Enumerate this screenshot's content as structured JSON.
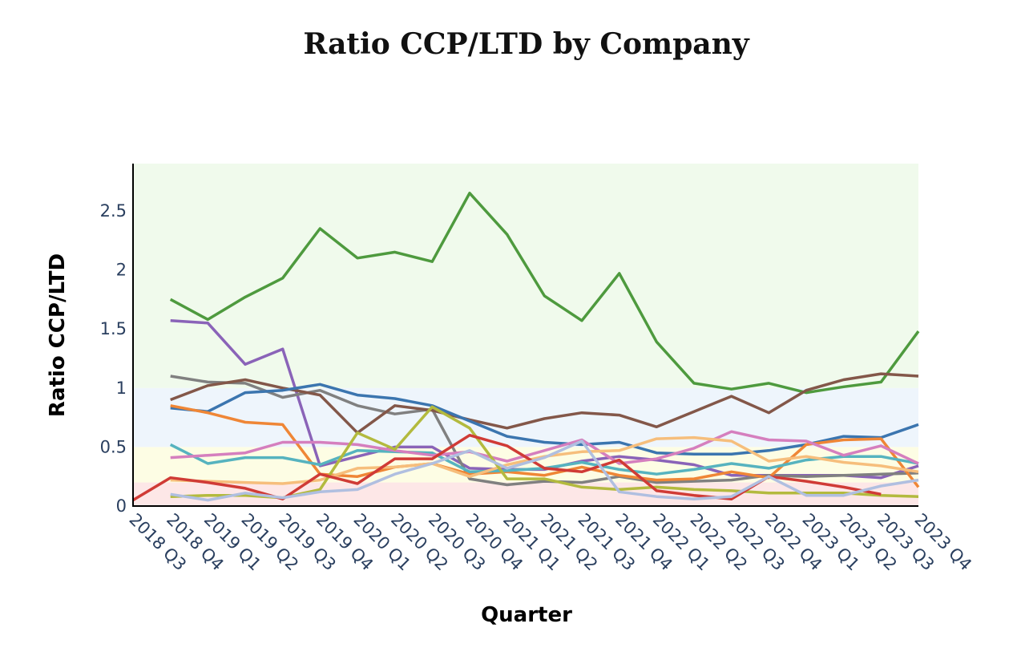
{
  "chart_data": {
    "type": "line",
    "title": "Ratio CCP/LTD by Company",
    "xlabel": "Quarter",
    "ylabel": "Ratio CCP/LTD",
    "ylim": [
      0,
      2.9
    ],
    "y_ticks": [
      "0",
      "0.5",
      "1",
      "1.5",
      "2",
      "2.5"
    ],
    "y_tick_values": [
      0,
      0.5,
      1,
      1.5,
      2,
      2.5
    ],
    "categories": [
      "2018 Q3",
      "2018 Q4",
      "2019 Q1",
      "2019 Q2",
      "2019 Q3",
      "2019 Q4",
      "2020 Q1",
      "2020 Q2",
      "2020 Q3",
      "2020 Q4",
      "2021 Q1",
      "2021 Q2",
      "2021 Q3",
      "2021 Q4",
      "2022 Q1",
      "2022 Q2",
      "2022 Q3",
      "2022 Q4",
      "2023 Q1",
      "2023 Q2",
      "2023 Q3",
      "2023 Q4"
    ],
    "x_tick_labels": [
      "2018 Q3",
      "2018 Q4",
      "2019 Q1",
      "2019 Q2",
      "2019 Q3",
      "2019 Q4",
      "2020 Q1",
      "2020 Q2",
      "2020 Q3",
      "2020 Q4",
      "2021 Q1",
      "2021 Q2",
      "2021 Q3",
      "2021 Q4",
      "2022 Q1",
      "2022 Q2",
      "2022 Q3",
      "2022 Q4",
      "2023 Q1",
      "2023 Q2",
      "2023 Q3",
      "2023 Q4"
    ],
    "background_bands": [
      {
        "from": 0,
        "to": 0.2,
        "color": "#fde7e7"
      },
      {
        "from": 0.2,
        "to": 0.5,
        "color": "#fdfde4"
      },
      {
        "from": 0.5,
        "to": 1.0,
        "color": "#eef5fc"
      },
      {
        "from": 1.0,
        "to": 2.9,
        "color": "#f0faec"
      }
    ],
    "grid": false,
    "legend": "none",
    "series": [
      {
        "color": "#4e9a3e",
        "values": [
          null,
          1.75,
          1.58,
          1.77,
          1.93,
          2.35,
          2.1,
          2.15,
          2.07,
          2.65,
          2.3,
          1.78,
          1.57,
          1.97,
          1.39,
          1.04,
          0.99,
          1.04,
          0.96,
          1.01,
          1.05,
          1.48
        ]
      },
      {
        "color": "#8a63b8",
        "values": [
          null,
          1.57,
          1.55,
          1.2,
          1.33,
          0.34,
          0.42,
          0.5,
          0.5,
          0.32,
          0.31,
          0.31,
          0.38,
          0.42,
          0.39,
          0.35,
          0.26,
          0.26,
          0.26,
          0.26,
          0.24,
          0.34
        ]
      },
      {
        "color": "#808080",
        "values": [
          null,
          1.1,
          1.05,
          1.04,
          0.92,
          0.98,
          0.85,
          0.78,
          0.82,
          0.23,
          0.18,
          0.21,
          0.2,
          0.25,
          0.2,
          0.21,
          0.22,
          0.26,
          0.25,
          0.26,
          0.27,
          0.28
        ]
      },
      {
        "color": "#835749",
        "values": [
          null,
          0.9,
          1.02,
          1.07,
          1.0,
          0.94,
          0.62,
          0.85,
          0.81,
          0.73,
          0.66,
          0.74,
          0.79,
          0.77,
          0.67,
          0.8,
          0.93,
          0.79,
          0.98,
          1.07,
          1.12,
          1.1
        ]
      },
      {
        "color": "#3b75af",
        "values": [
          null,
          0.83,
          0.8,
          0.96,
          0.98,
          1.03,
          0.94,
          0.91,
          0.85,
          0.72,
          0.59,
          0.54,
          0.52,
          0.54,
          0.45,
          0.44,
          0.44,
          0.47,
          0.52,
          0.59,
          0.58,
          0.69
        ]
      },
      {
        "color": "#ef8636",
        "values": [
          null,
          0.85,
          0.79,
          0.71,
          0.69,
          0.27,
          0.25,
          0.33,
          0.36,
          0.27,
          0.29,
          0.26,
          0.33,
          0.26,
          0.22,
          0.23,
          0.29,
          0.24,
          0.52,
          0.56,
          0.57,
          0.16
        ]
      },
      {
        "color": "#56b3bf",
        "values": [
          null,
          0.52,
          0.36,
          0.41,
          0.41,
          0.35,
          0.47,
          0.46,
          0.45,
          0.29,
          0.3,
          0.32,
          0.37,
          0.31,
          0.27,
          0.31,
          0.36,
          0.32,
          0.39,
          0.42,
          0.42,
          0.36
        ]
      },
      {
        "color": "#d57fbe",
        "values": [
          null,
          0.41,
          0.43,
          0.45,
          0.54,
          0.54,
          0.52,
          0.47,
          0.43,
          0.46,
          0.38,
          0.47,
          0.56,
          0.36,
          0.4,
          0.49,
          0.63,
          0.56,
          0.55,
          0.43,
          0.51,
          0.36
        ]
      },
      {
        "color": "#f6be7c",
        "values": [
          null,
          0.22,
          0.21,
          0.2,
          0.19,
          0.22,
          0.32,
          0.33,
          0.36,
          0.25,
          0.35,
          0.42,
          0.46,
          0.47,
          0.57,
          0.58,
          0.55,
          0.38,
          0.42,
          0.37,
          0.34,
          0.29
        ]
      },
      {
        "color": "#b3ba3e",
        "values": [
          null,
          0.08,
          0.09,
          0.09,
          0.07,
          0.14,
          0.62,
          0.48,
          0.84,
          0.66,
          0.23,
          0.23,
          0.16,
          0.14,
          0.16,
          0.14,
          0.13,
          0.11,
          0.11,
          0.11,
          0.09,
          0.08
        ]
      },
      {
        "color": "#d03b36",
        "values": [
          0.05,
          0.24,
          0.2,
          0.15,
          0.06,
          0.27,
          0.19,
          0.4,
          0.4,
          0.6,
          0.51,
          0.32,
          0.29,
          0.39,
          0.13,
          0.09,
          0.06,
          0.25,
          0.21,
          0.16,
          0.1,
          null
        ]
      },
      {
        "color": "#b0bfe0",
        "values": [
          null,
          0.1,
          0.05,
          0.11,
          0.07,
          0.12,
          0.14,
          0.27,
          0.36,
          0.47,
          0.32,
          0.41,
          0.55,
          0.12,
          0.08,
          0.06,
          0.08,
          0.25,
          0.09,
          0.09,
          0.17,
          0.22
        ]
      }
    ]
  }
}
